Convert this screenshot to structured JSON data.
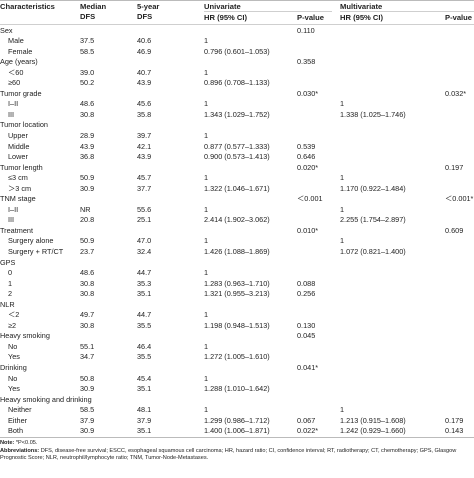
{
  "headers": {
    "characteristics": "Characteristics",
    "median_dfs_line1": "Median",
    "median_dfs_line2": "DFS",
    "five_year_line1": "5-year",
    "five_year_line2": "DFS",
    "univariate": "Univariate",
    "multivariate": "Multivariate",
    "uni_hr": "HR (95% CI)",
    "uni_p": "P-value",
    "multi_hr": "HR (95% CI)",
    "multi_p": "P-value"
  },
  "rows": [
    {
      "label": "Sex",
      "indent": false,
      "median": "",
      "fiveyr": "",
      "uhr": "",
      "up": "0.110",
      "mhr": "",
      "mp": ""
    },
    {
      "label": "Male",
      "indent": true,
      "median": "37.5",
      "fiveyr": "40.6",
      "uhr": "1",
      "up": "",
      "mhr": "",
      "mp": ""
    },
    {
      "label": "Female",
      "indent": true,
      "median": "58.5",
      "fiveyr": "46.9",
      "uhr": "0.796 (0.601–1.053)",
      "up": "",
      "mhr": "",
      "mp": ""
    },
    {
      "label": "Age (years)",
      "indent": false,
      "median": "",
      "fiveyr": "",
      "uhr": "",
      "up": "0.358",
      "mhr": "",
      "mp": ""
    },
    {
      "label": "＜60",
      "indent": true,
      "median": "39.0",
      "fiveyr": "40.7",
      "uhr": "1",
      "up": "",
      "mhr": "",
      "mp": ""
    },
    {
      "label": "≥60",
      "indent": true,
      "median": "50.2",
      "fiveyr": "43.9",
      "uhr": "0.896 (0.708–1.133)",
      "up": "",
      "mhr": "",
      "mp": ""
    },
    {
      "label": "Tumor grade",
      "indent": false,
      "median": "",
      "fiveyr": "",
      "uhr": "",
      "up": "0.030*",
      "mhr": "",
      "mp": "0.032*"
    },
    {
      "label": "I–II",
      "indent": true,
      "median": "48.6",
      "fiveyr": "45.6",
      "uhr": "1",
      "up": "",
      "mhr": "1",
      "mp": ""
    },
    {
      "label": "III",
      "indent": true,
      "median": "30.8",
      "fiveyr": "35.8",
      "uhr": "1.343 (1.029–1.752)",
      "up": "",
      "mhr": "1.338 (1.025–1.746)",
      "mp": ""
    },
    {
      "label": "Tumor location",
      "indent": false,
      "median": "",
      "fiveyr": "",
      "uhr": "",
      "up": "",
      "mhr": "",
      "mp": ""
    },
    {
      "label": "Upper",
      "indent": true,
      "median": "28.9",
      "fiveyr": "39.7",
      "uhr": "1",
      "up": "",
      "mhr": "",
      "mp": ""
    },
    {
      "label": "Middle",
      "indent": true,
      "median": "43.9",
      "fiveyr": "42.1",
      "uhr": "0.877 (0.577–1.333)",
      "up": "0.539",
      "mhr": "",
      "mp": ""
    },
    {
      "label": "Lower",
      "indent": true,
      "median": "36.8",
      "fiveyr": "43.9",
      "uhr": "0.900 (0.573–1.413)",
      "up": "0.646",
      "mhr": "",
      "mp": ""
    },
    {
      "label": "Tumor length",
      "indent": false,
      "median": "",
      "fiveyr": "",
      "uhr": "",
      "up": "0.020*",
      "mhr": "",
      "mp": "0.197"
    },
    {
      "label": "≤3 cm",
      "indent": true,
      "median": "50.9",
      "fiveyr": "45.7",
      "uhr": "1",
      "up": "",
      "mhr": "1",
      "mp": ""
    },
    {
      "label": "＞3 cm",
      "indent": true,
      "median": "30.9",
      "fiveyr": "37.7",
      "uhr": "1.322 (1.046–1.671)",
      "up": "",
      "mhr": "1.170 (0.922–1.484)",
      "mp": ""
    },
    {
      "label": "TNM stage",
      "indent": false,
      "median": "",
      "fiveyr": "",
      "uhr": "",
      "up": "＜0.001",
      "mhr": "",
      "mp": "＜0.001*"
    },
    {
      "label": "I–II",
      "indent": true,
      "median": "NR",
      "fiveyr": "55.6",
      "uhr": "1",
      "up": "",
      "mhr": "1",
      "mp": ""
    },
    {
      "label": "III",
      "indent": true,
      "median": "20.8",
      "fiveyr": "25.1",
      "uhr": "2.414 (1.902–3.062)",
      "up": "",
      "mhr": "2.255 (1.754–2.897)",
      "mp": ""
    },
    {
      "label": "Treatment",
      "indent": false,
      "median": "",
      "fiveyr": "",
      "uhr": "",
      "up": "0.010*",
      "mhr": "",
      "mp": "0.609"
    },
    {
      "label": "Surgery alone",
      "indent": true,
      "median": "50.9",
      "fiveyr": "47.0",
      "uhr": "1",
      "up": "",
      "mhr": "1",
      "mp": ""
    },
    {
      "label": "Surgery + RT/CT",
      "indent": true,
      "median": "23.7",
      "fiveyr": "32.4",
      "uhr": "1.426 (1.088–1.869)",
      "up": "",
      "mhr": "1.072 (0.821–1.400)",
      "mp": ""
    },
    {
      "label": "GPS",
      "indent": false,
      "median": "",
      "fiveyr": "",
      "uhr": "",
      "up": "",
      "mhr": "",
      "mp": ""
    },
    {
      "label": "0",
      "indent": true,
      "median": "48.6",
      "fiveyr": "44.7",
      "uhr": "1",
      "up": "",
      "mhr": "",
      "mp": ""
    },
    {
      "label": "1",
      "indent": true,
      "median": "30.8",
      "fiveyr": "35.3",
      "uhr": "1.283 (0.963–1.710)",
      "up": "0.088",
      "mhr": "",
      "mp": ""
    },
    {
      "label": "2",
      "indent": true,
      "median": "30.8",
      "fiveyr": "35.1",
      "uhr": "1.321 (0.955–3.213)",
      "up": "0.256",
      "mhr": "",
      "mp": ""
    },
    {
      "label": "NLR",
      "indent": false,
      "median": "",
      "fiveyr": "",
      "uhr": "",
      "up": "",
      "mhr": "",
      "mp": ""
    },
    {
      "label": "＜2",
      "indent": true,
      "median": "49.7",
      "fiveyr": "44.7",
      "uhr": "1",
      "up": "",
      "mhr": "",
      "mp": ""
    },
    {
      "label": "≥2",
      "indent": true,
      "median": "30.8",
      "fiveyr": "35.5",
      "uhr": "1.198 (0.948–1.513)",
      "up": "0.130",
      "mhr": "",
      "mp": ""
    },
    {
      "label": "Heavy smoking",
      "indent": false,
      "median": "",
      "fiveyr": "",
      "uhr": "",
      "up": "0.045",
      "mhr": "",
      "mp": ""
    },
    {
      "label": "No",
      "indent": true,
      "median": "55.1",
      "fiveyr": "46.4",
      "uhr": "1",
      "up": "",
      "mhr": "",
      "mp": ""
    },
    {
      "label": "Yes",
      "indent": true,
      "median": "34.7",
      "fiveyr": "35.5",
      "uhr": "1.272 (1.005–1.610)",
      "up": "",
      "mhr": "",
      "mp": ""
    },
    {
      "label": "Drinking",
      "indent": false,
      "median": "",
      "fiveyr": "",
      "uhr": "",
      "up": "0.041*",
      "mhr": "",
      "mp": ""
    },
    {
      "label": "No",
      "indent": true,
      "median": "50.8",
      "fiveyr": "45.4",
      "uhr": "1",
      "up": "",
      "mhr": "",
      "mp": ""
    },
    {
      "label": "Yes",
      "indent": true,
      "median": "30.9",
      "fiveyr": "35.1",
      "uhr": "1.288 (1.010–1.642)",
      "up": "",
      "mhr": "",
      "mp": ""
    },
    {
      "label": "Heavy smoking and drinking",
      "indent": false,
      "median": "",
      "fiveyr": "",
      "uhr": "",
      "up": "",
      "mhr": "",
      "mp": ""
    },
    {
      "label": "Neither",
      "indent": true,
      "median": "58.5",
      "fiveyr": "48.1",
      "uhr": "1",
      "up": "",
      "mhr": "1",
      "mp": ""
    },
    {
      "label": "Either",
      "indent": true,
      "median": "37.9",
      "fiveyr": "37.9",
      "uhr": "1.299 (0.986–1.712)",
      "up": "0.067",
      "mhr": "1.213 (0.915–1.608)",
      "mp": "0.179"
    },
    {
      "label": "Both",
      "indent": true,
      "median": "30.9",
      "fiveyr": "35.1",
      "uhr": "1.400 (1.006–1.871)",
      "up": "0.022*",
      "mhr": "1.242 (0.929–1.660)",
      "mp": "0.143"
    }
  ],
  "notes": {
    "note_label": "Note:",
    "note_text": " *P<0.05.",
    "abbr_label": "Abbreviations:",
    "abbr_text": " DFS, disease-free survival; ESCC, esophageal squamous cell carcinoma; HR, hazard ratio; CI, confidence interval; RT, radiotherapy; CT, chemotherapy; GPS, Glasgow Prognostic Score; NLR, neutrophil/lymphocyte ratio; TNM, Tumor-Node-Metastases."
  }
}
